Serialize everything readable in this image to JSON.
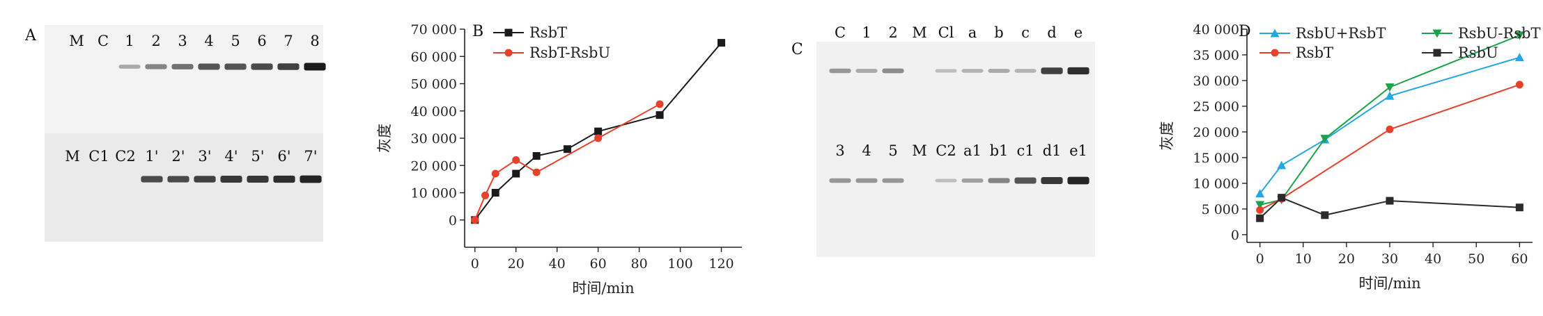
{
  "panel_labels": {
    "a": "A",
    "b": "B",
    "c": "C",
    "d": "D"
  },
  "blot_a": {
    "top_lanes": [
      "M",
      "C",
      "1",
      "2",
      "3",
      "4",
      "5",
      "6",
      "7",
      "8"
    ],
    "bottom_lanes": [
      "M",
      "C1",
      "C2",
      "1'",
      "2'",
      "3'",
      "4'",
      "5'",
      "6'",
      "7'"
    ],
    "top_band_intensity": [
      0,
      0,
      0.25,
      0.45,
      0.55,
      0.7,
      0.7,
      0.75,
      0.8,
      1.0
    ],
    "bottom_band_intensity": [
      0,
      0,
      0,
      0.75,
      0.75,
      0.8,
      0.85,
      0.85,
      0.9,
      0.95
    ]
  },
  "blot_c": {
    "top_lanes": [
      "C",
      "1",
      "2",
      "M",
      "Cl",
      "a",
      "b",
      "c",
      "d",
      "e"
    ],
    "bottom_lanes": [
      "3",
      "4",
      "5",
      "M",
      "C2",
      "a1",
      "b1",
      "c1",
      "d1",
      "e1"
    ],
    "top_band_intensity": [
      0.35,
      0.25,
      0.4,
      0,
      0.15,
      0.2,
      0.25,
      0.2,
      0.8,
      0.9
    ],
    "bottom_band_intensity": [
      0.35,
      0.35,
      0.35,
      0,
      0.15,
      0.3,
      0.45,
      0.7,
      0.85,
      0.95
    ]
  },
  "chart_data": [
    {
      "panel": "B",
      "type": "line",
      "xlabel": "时间/min",
      "ylabel": "灰度",
      "xlim": [
        -5,
        130
      ],
      "ylim": [
        -10000,
        70000
      ],
      "xticks": [
        0,
        20,
        40,
        60,
        80,
        100,
        120
      ],
      "yticks": [
        0,
        10000,
        20000,
        30000,
        40000,
        50000,
        60000,
        70000
      ],
      "ytick_labels": [
        "0",
        "10 000",
        "20 000",
        "30 000",
        "40 000",
        "50 000",
        "60 000",
        "70 000"
      ],
      "legend_position": "top-right",
      "series": [
        {
          "name": "RsbT",
          "color": "#1a1a1a",
          "marker": "square",
          "x": [
            0,
            10,
            20,
            30,
            45,
            60,
            90,
            120
          ],
          "y": [
            0,
            10000,
            17000,
            23500,
            26000,
            32500,
            38500,
            65000
          ]
        },
        {
          "name": "RsbT-RsbU",
          "color": "#e8402a",
          "marker": "circle",
          "x": [
            0,
            5,
            10,
            20,
            30,
            60,
            90
          ],
          "y": [
            0,
            9000,
            17000,
            22000,
            17500,
            30000,
            42500
          ]
        }
      ]
    },
    {
      "panel": "D",
      "type": "line",
      "xlabel": "时间/min",
      "ylabel": "灰度",
      "xlim": [
        -3,
        63
      ],
      "ylim": [
        -1500,
        40000
      ],
      "xticks": [
        0,
        10,
        20,
        30,
        40,
        50,
        60
      ],
      "yticks": [
        0,
        5000,
        10000,
        15000,
        20000,
        25000,
        30000,
        35000,
        40000
      ],
      "ytick_labels": [
        "0",
        "5 000",
        "10 000",
        "15 000",
        "20 000",
        "25 000",
        "30 000",
        "35 000",
        "40 000"
      ],
      "legend_position": "top",
      "series": [
        {
          "name": "RsbU+RsbT",
          "color": "#22a8e0",
          "marker": "triangle",
          "x": [
            0,
            5,
            15,
            30,
            60
          ],
          "y": [
            8000,
            13500,
            18500,
            27000,
            34500
          ]
        },
        {
          "name": "RsbU-RsbT",
          "color": "#1aa34a",
          "marker": "triangle-down",
          "x": [
            0,
            5,
            15,
            30,
            60
          ],
          "y": [
            5800,
            6800,
            18700,
            28700,
            38800
          ]
        },
        {
          "name": "RsbT",
          "color": "#e8402a",
          "marker": "circle",
          "x": [
            0,
            5,
            30,
            60
          ],
          "y": [
            4800,
            7000,
            20500,
            29200
          ]
        },
        {
          "name": "RsbU",
          "color": "#2a2a2a",
          "marker": "square",
          "x": [
            0,
            5,
            15,
            30,
            60
          ],
          "y": [
            3200,
            7200,
            3800,
            6600,
            5300
          ]
        }
      ]
    }
  ]
}
